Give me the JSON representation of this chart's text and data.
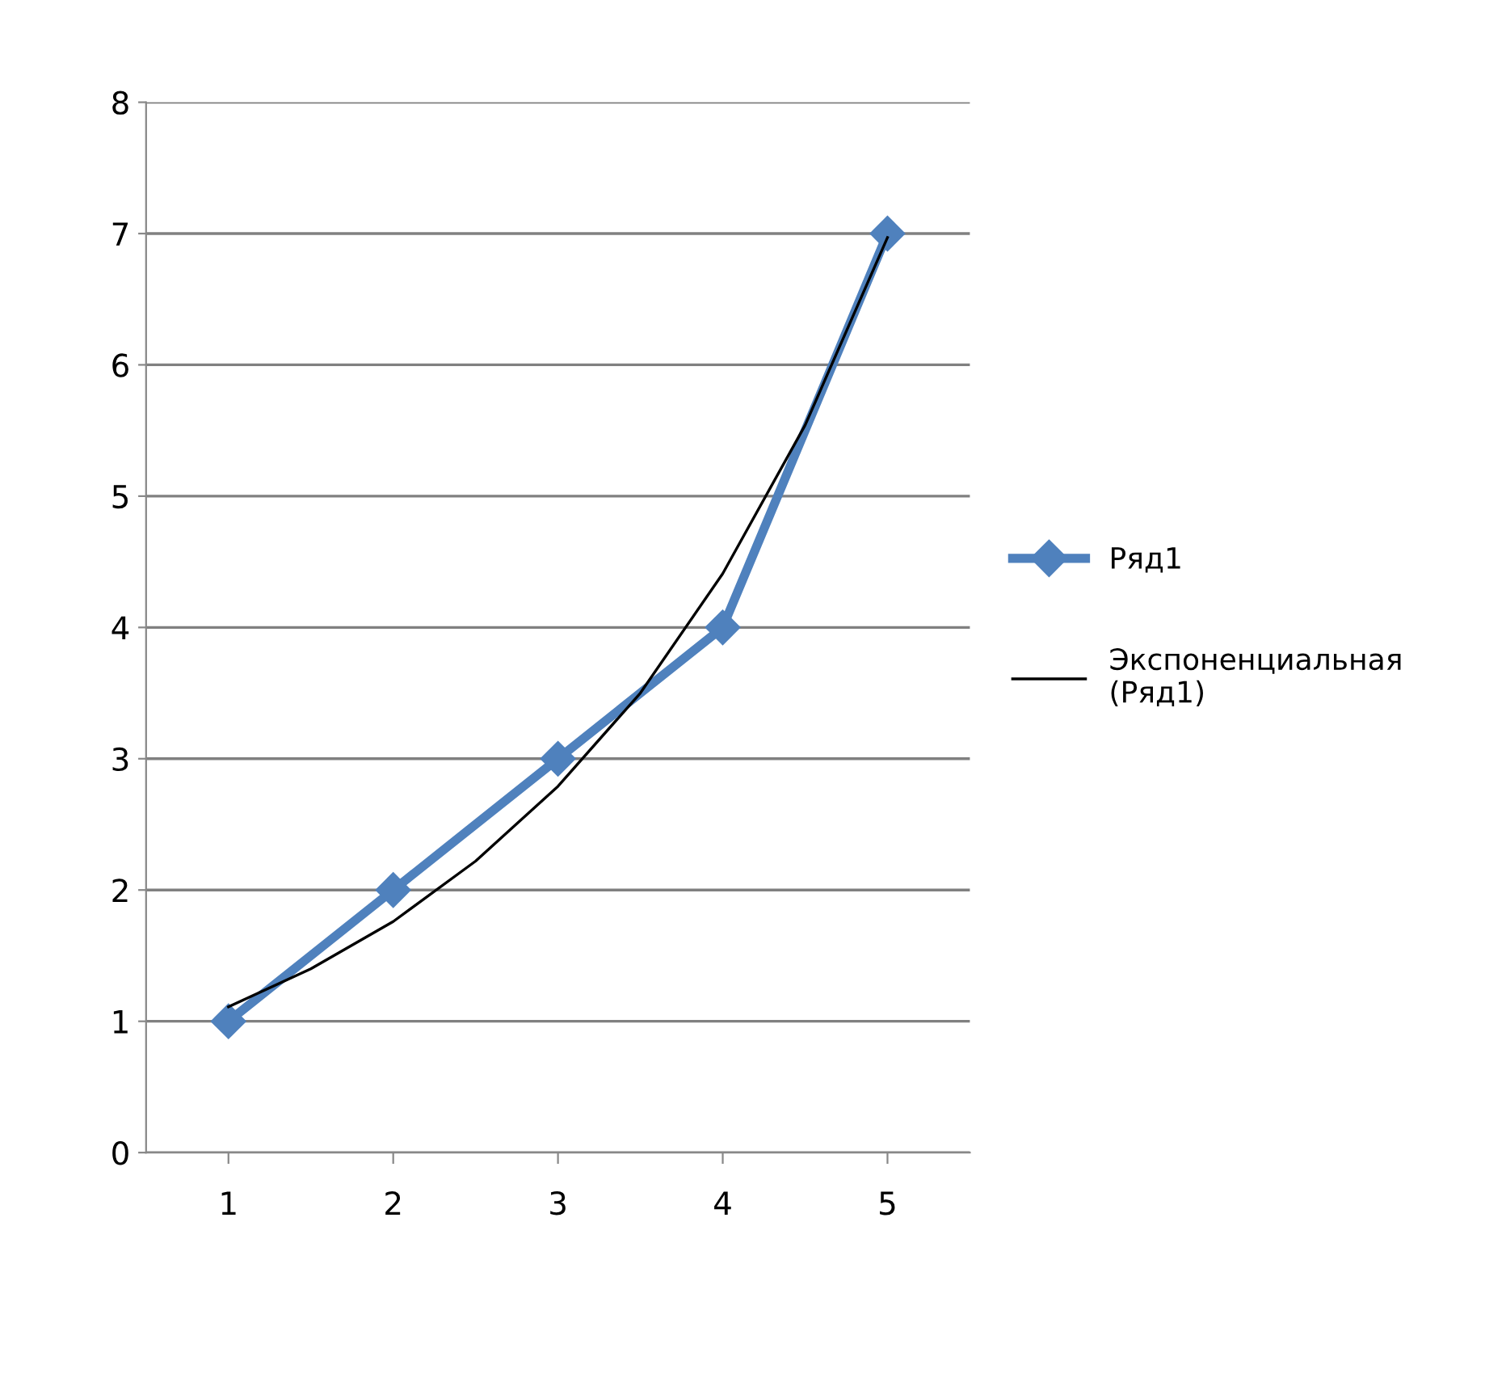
{
  "chart_data": {
    "type": "line",
    "x": [
      1,
      2,
      3,
      4,
      5
    ],
    "xlim": [
      0.5,
      5.5
    ],
    "xticks": [
      1,
      2,
      3,
      4,
      5
    ],
    "ylim": [
      0,
      8
    ],
    "yticks": [
      0,
      1,
      2,
      3,
      4,
      5,
      6,
      7,
      8
    ],
    "grid": "y",
    "legend": "right",
    "marker": "diamond",
    "series": [
      {
        "name": "Ряд1",
        "color": "#4f81bd",
        "values": [
          1,
          2,
          3,
          4,
          7
        ]
      },
      {
        "name": "Экспоненциальная\n(Ряд1)",
        "color": "#000000",
        "marker": "none",
        "x": [
          1,
          1.5,
          2,
          2.5,
          3,
          3.5,
          4,
          4.5,
          5
        ],
        "values": [
          1.11,
          1.4,
          1.76,
          2.22,
          2.79,
          3.5,
          4.41,
          5.54,
          6.97
        ]
      }
    ]
  }
}
